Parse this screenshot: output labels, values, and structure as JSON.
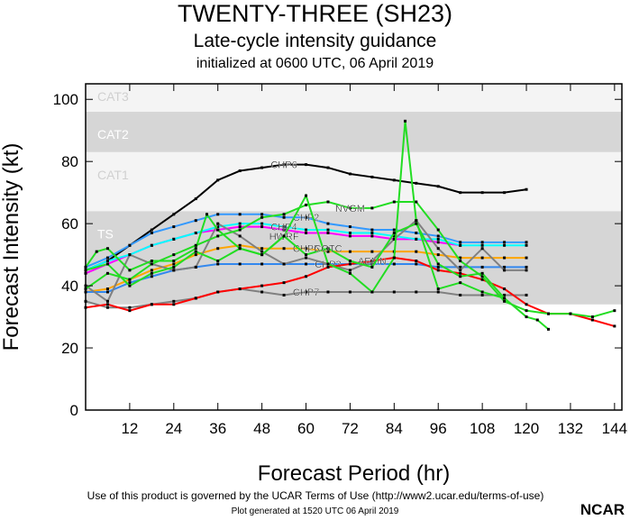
{
  "title": "TWENTY-THREE (SH23)",
  "subtitle": "Late-cycle intensity guidance",
  "initialized": "initialized at 0600 UTC, 06 April 2019",
  "terms": "Use of this product is governed by the UCAR Terms of Use (http://www2.ucar.edu/terms-of-use)",
  "generated": "Plot generated at 1520 UTC   06 April 2019",
  "logo": "NCAR",
  "chart_data": {
    "type": "line",
    "xlabel": "Forecast Period (hr)",
    "ylabel": "Forecast Intensity (kt)",
    "xlim": [
      0,
      146
    ],
    "ylim": [
      0,
      105
    ],
    "xticks": [
      12,
      24,
      36,
      48,
      60,
      72,
      84,
      96,
      108,
      120,
      132,
      144
    ],
    "yticks": [
      0,
      20,
      40,
      60,
      80,
      100
    ],
    "grid": false,
    "bands": [
      {
        "label": "CAT3",
        "from": 96,
        "to": 105,
        "color": "#f4f4f4"
      },
      {
        "label": "CAT2",
        "from": 83,
        "to": 96,
        "color": "#d6d6d6"
      },
      {
        "label": "CAT1",
        "from": 64,
        "to": 83,
        "color": "#f4f4f4"
      },
      {
        "label": "TS",
        "from": 34,
        "to": 64,
        "color": "#d6d6d6"
      }
    ],
    "series": [
      {
        "name": "CHP6",
        "color": "#000000",
        "x": [
          0,
          6,
          12,
          18,
          24,
          30,
          36,
          42,
          48,
          54,
          60,
          66,
          72,
          78,
          84,
          90,
          96,
          102,
          108,
          114,
          120
        ],
        "y": [
          45,
          48,
          53,
          58,
          63,
          68,
          74,
          77,
          78,
          79,
          79,
          78,
          76,
          75,
          74,
          73,
          72,
          70,
          70,
          70,
          71
        ]
      },
      {
        "name": "CHP2",
        "color": "#3399ff",
        "x": [
          0,
          6,
          12,
          18,
          24,
          30,
          36,
          42,
          48,
          54,
          60,
          66,
          72,
          78,
          84,
          90,
          96,
          102,
          108,
          114,
          120
        ],
        "y": [
          46,
          49,
          53,
          57,
          59,
          61,
          63,
          63,
          63,
          62,
          62,
          60,
          59,
          58,
          58,
          57,
          56,
          54,
          54,
          54,
          54
        ]
      },
      {
        "name": "",
        "color": "#ff00ff",
        "x": [
          0,
          6,
          12,
          18,
          24,
          30,
          36,
          42,
          48,
          54,
          60,
          66,
          72,
          78,
          84,
          90,
          96,
          102
        ],
        "y": [
          44,
          47,
          50,
          53,
          55,
          57,
          58,
          59,
          59,
          58,
          57,
          57,
          56,
          56,
          55,
          55,
          54,
          53
        ]
      },
      {
        "name": "CHP4",
        "color": "#00ffff",
        "x": [
          0,
          6,
          12,
          18,
          24,
          30,
          36,
          42,
          48,
          54,
          60,
          66,
          72,
          78,
          84,
          90,
          96,
          102,
          108,
          114,
          120
        ],
        "y": [
          45,
          48,
          50,
          53,
          55,
          57,
          59,
          60,
          60,
          59,
          58,
          58,
          57,
          57,
          56,
          55,
          55,
          53,
          53,
          53,
          53
        ]
      },
      {
        "name": "CHP5",
        "color": "#ffa500",
        "x": [
          0,
          6,
          12,
          18,
          24,
          30,
          36,
          42,
          48,
          54,
          60,
          66,
          72,
          78,
          84,
          90,
          96,
          102,
          108,
          114,
          120
        ],
        "y": [
          38,
          39,
          42,
          45,
          47,
          50,
          52,
          53,
          52,
          52,
          52,
          51,
          51,
          51,
          51,
          51,
          50,
          49,
          49,
          49,
          49
        ]
      },
      {
        "name": "CHP3",
        "color": "#3388ee",
        "x": [
          0,
          6,
          12,
          18,
          24,
          30,
          36,
          42,
          48,
          54,
          60,
          66,
          72,
          78,
          84,
          90,
          96,
          102,
          108,
          114,
          120
        ],
        "y": [
          38,
          38,
          41,
          43,
          45,
          46,
          47,
          47,
          47,
          47,
          47,
          47,
          47,
          47,
          47,
          47,
          46,
          46,
          46,
          46,
          46
        ]
      },
      {
        "name": "",
        "color": "#808080",
        "x": [
          0,
          6,
          12,
          18,
          24,
          30,
          36,
          42,
          48,
          54,
          60,
          66,
          72,
          78,
          84,
          90,
          96,
          102,
          108,
          114,
          120
        ],
        "y": [
          40,
          35,
          50,
          47,
          45,
          46,
          60,
          56,
          51,
          47,
          49,
          47,
          45,
          48,
          55,
          61,
          52,
          45,
          52,
          45,
          45
        ]
      },
      {
        "name": "CHP7",
        "color": "#808080",
        "x": [
          0,
          6,
          12,
          18,
          24,
          30,
          36,
          42,
          48,
          54,
          60,
          66,
          72,
          78,
          84,
          90,
          96,
          102,
          108,
          114,
          120
        ],
        "y": [
          35,
          33,
          33,
          34,
          35,
          36,
          38,
          39,
          38,
          37,
          38,
          38,
          38,
          38,
          38,
          38,
          38,
          37,
          37,
          37,
          37
        ]
      },
      {
        "name": "AEMN",
        "color": "#ff0000",
        "x": [
          0,
          6,
          12,
          18,
          24,
          30,
          36,
          42,
          48,
          54,
          60,
          66,
          72,
          78,
          84,
          90,
          96,
          102,
          108,
          114,
          120,
          126,
          132,
          138,
          144
        ],
        "y": [
          33,
          34,
          32,
          34,
          34,
          36,
          38,
          39,
          40,
          41,
          43,
          46,
          47,
          48,
          49,
          48,
          45,
          44,
          42,
          39,
          34,
          31,
          31,
          29,
          27
        ]
      },
      {
        "name": "HWRF",
        "color": "#22dd22",
        "x": [
          0,
          3,
          6,
          12,
          18,
          24,
          30,
          33,
          36,
          42,
          48,
          54,
          60,
          66,
          72,
          78,
          84,
          87,
          90,
          96,
          102,
          108,
          114,
          120,
          123,
          126
        ],
        "y": [
          46,
          51,
          52,
          45,
          48,
          48,
          52,
          63,
          58,
          52,
          50,
          56,
          69,
          47,
          44,
          38,
          49,
          93,
          61,
          39,
          41,
          38,
          36,
          30,
          29,
          26
        ]
      },
      {
        "name": "NVGM",
        "color": "#22dd22",
        "x": [
          0,
          6,
          12,
          18,
          24,
          30,
          36,
          42,
          48,
          54,
          60,
          66,
          72,
          78,
          84,
          90,
          96,
          102,
          108,
          114,
          120,
          126,
          132,
          138,
          144
        ],
        "y": [
          39,
          44,
          42,
          47,
          50,
          53,
          56,
          58,
          62,
          63,
          66,
          67,
          65,
          65,
          67,
          67,
          58,
          48,
          43,
          35,
          32,
          31,
          31,
          30,
          32
        ]
      },
      {
        "name": "COTC",
        "color": "#22dd22",
        "x": [
          0,
          6,
          12,
          18,
          24,
          30,
          36,
          42,
          48,
          54,
          60,
          66,
          72,
          78,
          84,
          90,
          96,
          102,
          108,
          114
        ],
        "y": [
          45,
          47,
          40,
          44,
          46,
          51,
          48,
          52,
          50,
          56,
          50,
          52,
          48,
          46,
          57,
          60,
          47,
          43,
          44,
          36
        ]
      }
    ]
  }
}
